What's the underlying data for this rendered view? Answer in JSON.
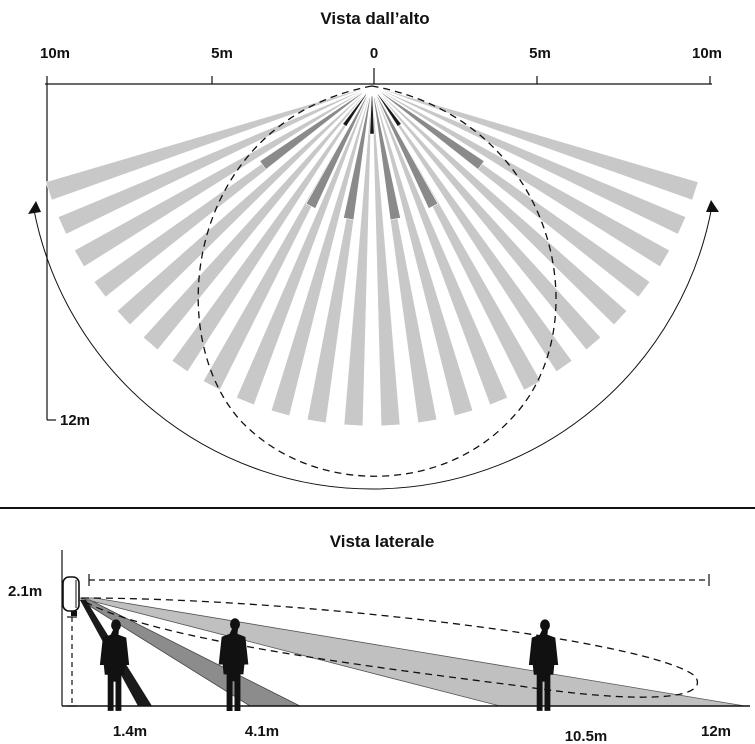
{
  "top_view": {
    "title": "Vista dall’alto",
    "scale_labels": {
      "left_far": "10m",
      "left_mid": "5m",
      "center": "0",
      "right_mid": "5m",
      "right_far": "10m"
    },
    "depth_label": "12m"
  },
  "side_view": {
    "title": "Vista laterale",
    "height_label": "2.1m",
    "distance_labels": [
      "1.4m",
      "4.1m",
      "10.5m",
      "12m"
    ]
  },
  "colors": {
    "far_beam": "#c8c8c8",
    "mid_beam": "#8a8a8a",
    "near_beam": "#1a1a1a",
    "side_far": "#c0c0c0",
    "side_mid": "#8c8c8c",
    "silhouette": "#111111"
  }
}
